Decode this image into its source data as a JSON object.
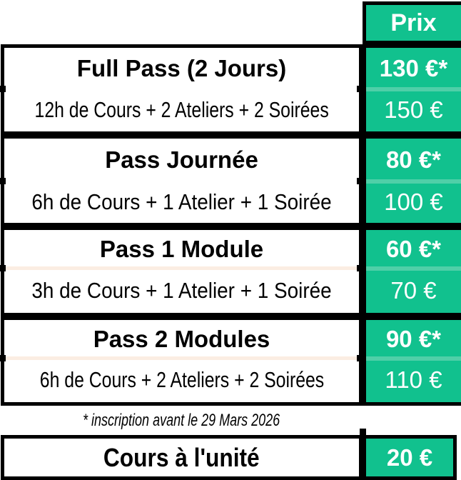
{
  "colors": {
    "green": "#11c18e",
    "green_seam": "#4fcfa8",
    "cream_seam": "#fbede2",
    "border": "#000000",
    "text": "#000000",
    "price_text": "#ffffff"
  },
  "header": {
    "price_col_label": "Prix"
  },
  "passes": [
    {
      "title": "Full Pass (2 Jours)",
      "details": "12h de Cours + 2 Ateliers + 2 Soirées",
      "early_price": "130 €*",
      "regular_price": "150 €"
    },
    {
      "title": "Pass Journée",
      "details": "6h de Cours + 1 Atelier + 1 Soirée",
      "early_price": "80 €*",
      "regular_price": "100 €"
    },
    {
      "title": "Pass 1 Module",
      "details": "3h de Cours + 1 Atelier + 1 Soirée",
      "early_price": "60 €*",
      "regular_price": "70 €"
    },
    {
      "title": "Pass 2 Modules",
      "details": "6h de Cours + 2 Ateliers + 2 Soirées",
      "early_price": "90 €*",
      "regular_price": "110 €"
    }
  ],
  "footnote": "* inscription avant le 29 Mars 2026",
  "single_class": {
    "title": "Cours à l'unité",
    "price": "20 €"
  }
}
